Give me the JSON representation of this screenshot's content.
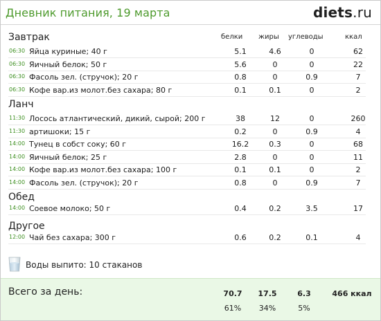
{
  "header": {
    "title": "Дневник питания, 19 марта",
    "logo_main": "diets",
    "logo_tld": ".ru"
  },
  "columns": {
    "protein": "белки",
    "fat": "жиры",
    "carbs": "углеводы",
    "kcal": "ккал"
  },
  "sections": [
    {
      "title": "Завтрак",
      "rows": [
        {
          "time": "06:30",
          "name": "Яйца куриные; 40 г",
          "protein": "5.1",
          "fat": "4.6",
          "carbs": "0",
          "kcal": "62"
        },
        {
          "time": "06:30",
          "name": "Яичный белок; 50 г",
          "protein": "5.6",
          "fat": "0",
          "carbs": "0",
          "kcal": "22"
        },
        {
          "time": "06:30",
          "name": "Фасоль зел. (стручок); 20 г",
          "protein": "0.8",
          "fat": "0",
          "carbs": "0.9",
          "kcal": "7"
        },
        {
          "time": "06:30",
          "name": "Кофе вар.из молот.без сахара; 80 г",
          "protein": "0.1",
          "fat": "0.1",
          "carbs": "0",
          "kcal": "2"
        }
      ]
    },
    {
      "title": "Ланч",
      "rows": [
        {
          "time": "11:30",
          "name": "Лосось атлантический, дикий, сырой; 200 г",
          "protein": "38",
          "fat": "12",
          "carbs": "0",
          "kcal": "260"
        },
        {
          "time": "11:30",
          "name": "артишоки; 15 г",
          "protein": "0.2",
          "fat": "0",
          "carbs": "0.9",
          "kcal": "4"
        },
        {
          "time": "14:00",
          "name": "Тунец в собст соку; 60 г",
          "protein": "16.2",
          "fat": "0.3",
          "carbs": "0",
          "kcal": "68"
        },
        {
          "time": "14:00",
          "name": "Яичный белок; 25 г",
          "protein": "2.8",
          "fat": "0",
          "carbs": "0",
          "kcal": "11"
        },
        {
          "time": "14:00",
          "name": "Кофе вар.из молот.без сахара; 100 г",
          "protein": "0.1",
          "fat": "0.1",
          "carbs": "0",
          "kcal": "2"
        },
        {
          "time": "14:00",
          "name": "Фасоль зел. (стручок); 20 г",
          "protein": "0.8",
          "fat": "0",
          "carbs": "0.9",
          "kcal": "7"
        }
      ]
    },
    {
      "title": "Обед",
      "rows": [
        {
          "time": "14:00",
          "name": "Соевое молоко; 50 г",
          "protein": "0.4",
          "fat": "0.2",
          "carbs": "3.5",
          "kcal": "17"
        }
      ]
    },
    {
      "title": "Другое",
      "rows": [
        {
          "time": "12:00",
          "name": "Чай без сахара; 300 г",
          "protein": "0.6",
          "fat": "0.2",
          "carbs": "0.1",
          "kcal": "4"
        }
      ]
    }
  ],
  "water": {
    "icon": "water-glass-icon",
    "text": "Воды выпито: 10 стаканов"
  },
  "totals": {
    "label": "Всего за день:",
    "protein": "70.7",
    "fat": "17.5",
    "carbs": "6.3",
    "kcal": "466 ккал",
    "protein_pct": "61%",
    "fat_pct": "34%",
    "carbs_pct": "5%"
  },
  "colors": {
    "title_green": "#4d9a2c",
    "time_green": "#3c8f1f",
    "footer_bg": "#eaf8e6"
  }
}
